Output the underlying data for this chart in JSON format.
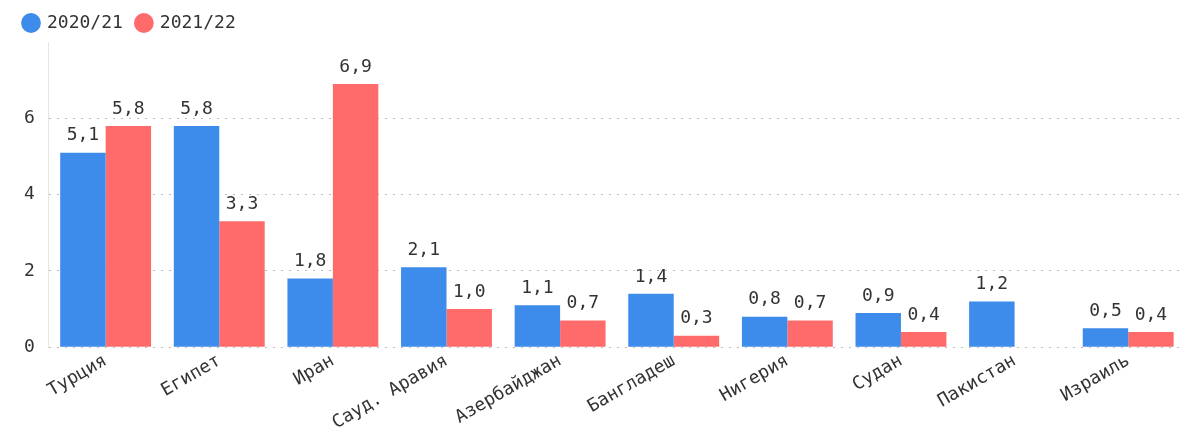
{
  "chart_data": {
    "type": "bar",
    "categories": [
      "Турция",
      "Египет",
      "Иран",
      "Сауд. Аравия",
      "Азербайджан",
      "Бангладеш",
      "Нигерия",
      "Судан",
      "Пакистан",
      "Израиль"
    ],
    "series": [
      {
        "name": "2020/21",
        "color": "#3d8bea",
        "values": [
          5.1,
          5.8,
          1.8,
          2.1,
          1.1,
          1.4,
          0.8,
          0.9,
          1.2,
          0.5
        ],
        "value_labels": [
          "5,1",
          "5,8",
          "1,8",
          "2,1",
          "1,1",
          "1,4",
          "0,8",
          "0,9",
          "1,2",
          "0,5"
        ]
      },
      {
        "name": "2021/22",
        "color": "#ff6b6b",
        "values": [
          5.8,
          3.3,
          6.9,
          1.0,
          0.7,
          0.3,
          0.7,
          0.4,
          null,
          0.4
        ],
        "value_labels": [
          "5,8",
          "3,3",
          "6,9",
          "1,0",
          "0,7",
          "0,3",
          "0,7",
          "0,4",
          null,
          "0,4"
        ]
      }
    ],
    "ylim": [
      0,
      8
    ],
    "yticks": [
      0,
      2,
      4,
      6
    ],
    "grid": "y",
    "legend": "top left"
  }
}
